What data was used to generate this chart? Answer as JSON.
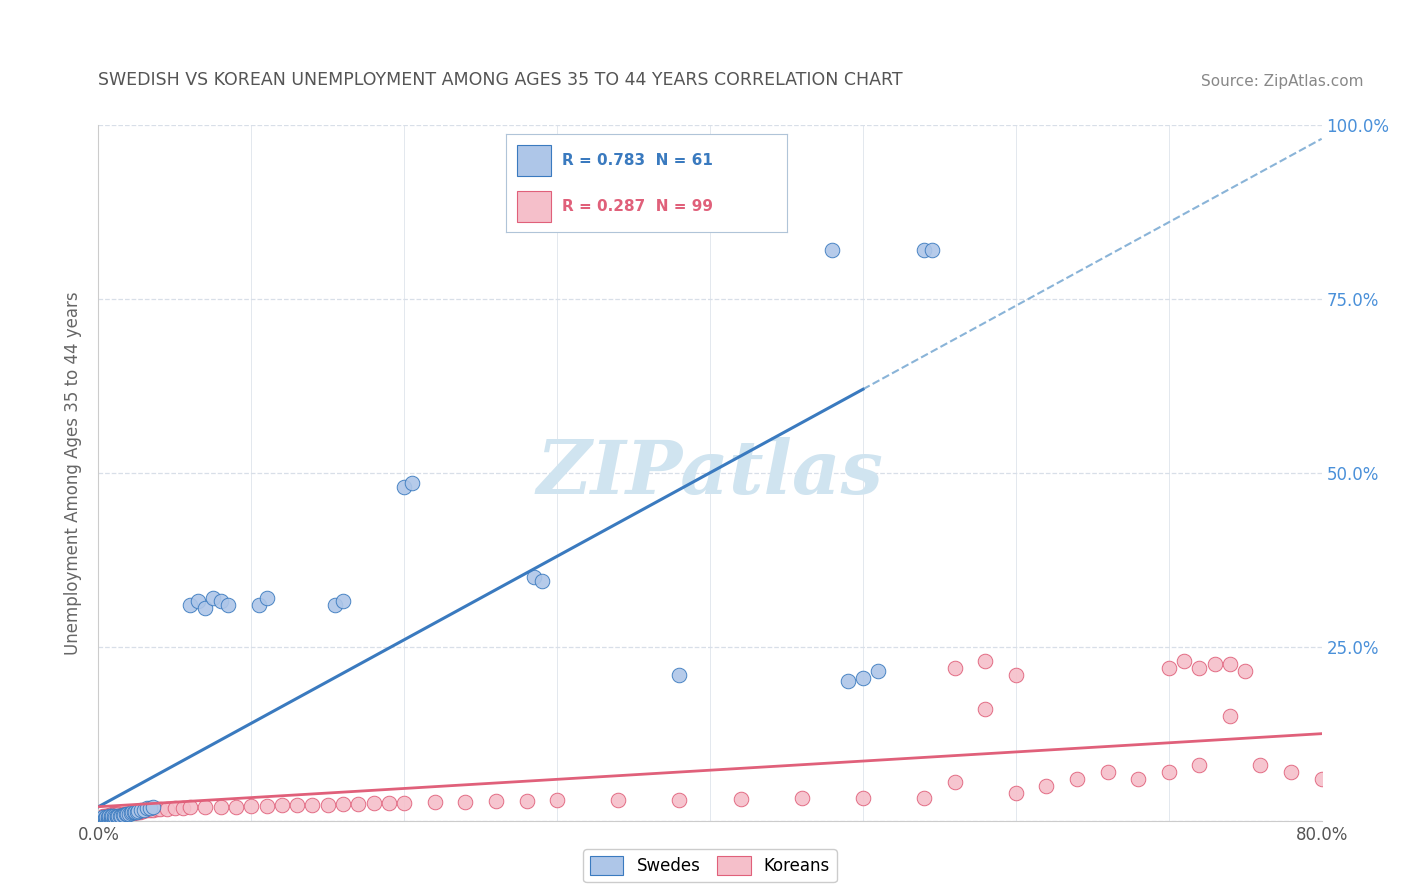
{
  "title": "SWEDISH VS KOREAN UNEMPLOYMENT AMONG AGES 35 TO 44 YEARS CORRELATION CHART",
  "source": "Source: ZipAtlas.com",
  "ylabel": "Unemployment Among Ages 35 to 44 years",
  "legend_swedes": "Swedes",
  "legend_koreans": "Koreans",
  "swede_R": "0.783",
  "swede_N": "61",
  "korean_R": "0.287",
  "korean_N": "99",
  "swede_color": "#aec6e8",
  "swede_line_color": "#3a7abf",
  "korean_color": "#f5bfca",
  "korean_line_color": "#e0607a",
  "dash_color": "#8ab4d8",
  "background_color": "#ffffff",
  "watermark_color": "#d0e4f0",
  "x_min": 0.0,
  "x_max": 0.8,
  "y_min": 0.0,
  "y_max": 1.0,
  "y_tick_color": "#4a90d9",
  "grid_color": "#d8dfe8",
  "title_color": "#555555",
  "source_color": "#888888",
  "ylabel_color": "#666666",
  "swede_pts_x": [
    0.001,
    0.002,
    0.003,
    0.003,
    0.004,
    0.004,
    0.005,
    0.005,
    0.006,
    0.006,
    0.007,
    0.007,
    0.008,
    0.008,
    0.009,
    0.009,
    0.01,
    0.01,
    0.011,
    0.012,
    0.012,
    0.013,
    0.014,
    0.015,
    0.016,
    0.017,
    0.018,
    0.019,
    0.02,
    0.021,
    0.022,
    0.023,
    0.024,
    0.025,
    0.026,
    0.028,
    0.03,
    0.032,
    0.034,
    0.036,
    0.06,
    0.065,
    0.07,
    0.075,
    0.08,
    0.085,
    0.105,
    0.11,
    0.155,
    0.16,
    0.2,
    0.205,
    0.285,
    0.29,
    0.38,
    0.49,
    0.5,
    0.51,
    0.54,
    0.545,
    0.48
  ],
  "swede_pts_y": [
    0.003,
    0.003,
    0.004,
    0.005,
    0.003,
    0.004,
    0.004,
    0.005,
    0.003,
    0.005,
    0.004,
    0.006,
    0.004,
    0.006,
    0.004,
    0.006,
    0.004,
    0.006,
    0.005,
    0.005,
    0.007,
    0.006,
    0.007,
    0.007,
    0.008,
    0.008,
    0.009,
    0.01,
    0.01,
    0.011,
    0.012,
    0.012,
    0.013,
    0.013,
    0.014,
    0.015,
    0.016,
    0.018,
    0.018,
    0.02,
    0.31,
    0.315,
    0.305,
    0.32,
    0.315,
    0.31,
    0.31,
    0.32,
    0.31,
    0.315,
    0.48,
    0.485,
    0.35,
    0.345,
    0.21,
    0.2,
    0.205,
    0.215,
    0.82,
    0.82,
    0.82
  ],
  "korean_pts_x": [
    0.001,
    0.001,
    0.002,
    0.002,
    0.003,
    0.003,
    0.004,
    0.004,
    0.005,
    0.005,
    0.006,
    0.006,
    0.007,
    0.007,
    0.008,
    0.008,
    0.009,
    0.009,
    0.01,
    0.01,
    0.011,
    0.011,
    0.012,
    0.012,
    0.013,
    0.013,
    0.014,
    0.015,
    0.016,
    0.017,
    0.018,
    0.019,
    0.02,
    0.021,
    0.022,
    0.023,
    0.024,
    0.025,
    0.026,
    0.027,
    0.028,
    0.029,
    0.03,
    0.032,
    0.034,
    0.036,
    0.038,
    0.04,
    0.045,
    0.05,
    0.055,
    0.06,
    0.07,
    0.08,
    0.09,
    0.1,
    0.11,
    0.12,
    0.13,
    0.14,
    0.15,
    0.16,
    0.17,
    0.18,
    0.19,
    0.2,
    0.22,
    0.24,
    0.26,
    0.28,
    0.3,
    0.34,
    0.38,
    0.42,
    0.46,
    0.5,
    0.54,
    0.56,
    0.58,
    0.6,
    0.62,
    0.64,
    0.66,
    0.68,
    0.7,
    0.72,
    0.74,
    0.76,
    0.78,
    0.8,
    0.56,
    0.58,
    0.6,
    0.7,
    0.71,
    0.72,
    0.73,
    0.74,
    0.75
  ],
  "korean_pts_y": [
    0.002,
    0.004,
    0.002,
    0.005,
    0.002,
    0.006,
    0.003,
    0.006,
    0.003,
    0.007,
    0.003,
    0.007,
    0.004,
    0.008,
    0.004,
    0.008,
    0.004,
    0.009,
    0.005,
    0.009,
    0.005,
    0.009,
    0.006,
    0.01,
    0.006,
    0.01,
    0.007,
    0.008,
    0.008,
    0.009,
    0.009,
    0.01,
    0.01,
    0.01,
    0.011,
    0.011,
    0.012,
    0.012,
    0.013,
    0.013,
    0.014,
    0.014,
    0.015,
    0.015,
    0.016,
    0.016,
    0.017,
    0.017,
    0.017,
    0.018,
    0.018,
    0.019,
    0.019,
    0.02,
    0.02,
    0.021,
    0.021,
    0.022,
    0.022,
    0.023,
    0.023,
    0.024,
    0.024,
    0.025,
    0.025,
    0.026,
    0.027,
    0.027,
    0.028,
    0.028,
    0.029,
    0.03,
    0.03,
    0.031,
    0.032,
    0.032,
    0.033,
    0.055,
    0.16,
    0.04,
    0.05,
    0.06,
    0.07,
    0.06,
    0.07,
    0.08,
    0.15,
    0.08,
    0.07,
    0.06,
    0.22,
    0.23,
    0.21,
    0.22,
    0.23,
    0.22,
    0.225,
    0.225,
    0.215
  ],
  "swede_line_x0": 0.0,
  "swede_line_x1": 0.5,
  "swede_line_y0": 0.02,
  "swede_line_y1": 0.62,
  "dash_line_x0": 0.5,
  "dash_line_x1": 0.8,
  "dash_line_y0": 0.62,
  "dash_line_y1": 0.98,
  "korean_line_x0": 0.0,
  "korean_line_x1": 0.8,
  "korean_line_y0": 0.02,
  "korean_line_y1": 0.125
}
